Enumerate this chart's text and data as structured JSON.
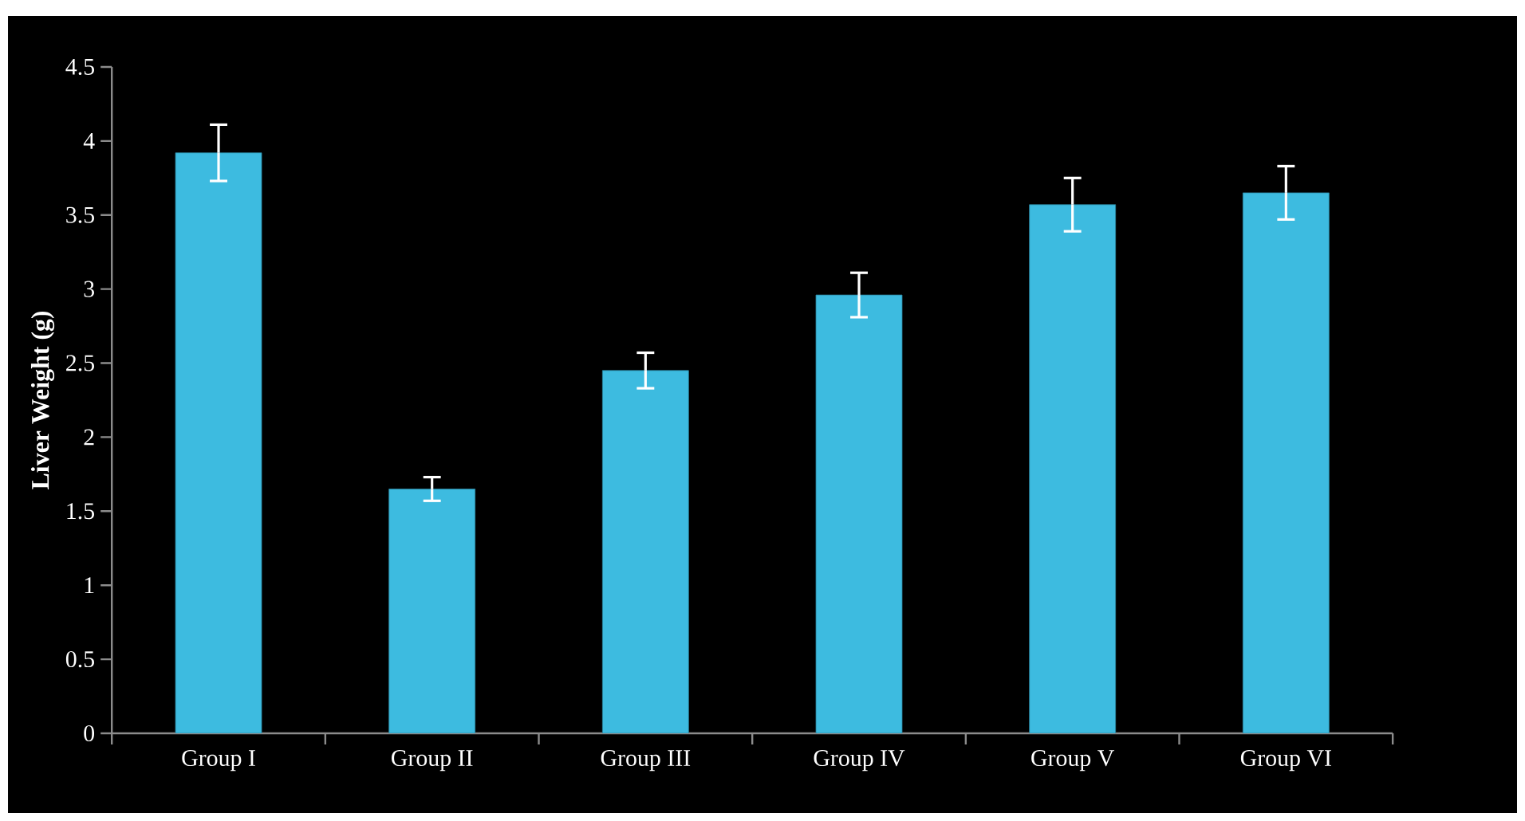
{
  "chart_data": {
    "type": "bar",
    "ylabel": "Liver Weight (g)",
    "categories": [
      "Group I",
      "Group II",
      "Group III",
      "Group IV",
      "Group V",
      "Group VI"
    ],
    "values": [
      3.92,
      1.65,
      2.45,
      2.96,
      3.57,
      3.65
    ],
    "errors": [
      0.19,
      0.08,
      0.12,
      0.15,
      0.18,
      0.18
    ],
    "color": "#3dbbe0",
    "ylim": [
      0,
      4.5
    ],
    "yticks": [
      0,
      0.5,
      1,
      1.5,
      2,
      2.5,
      3,
      3.5,
      4,
      4.5
    ],
    "grid": false
  }
}
